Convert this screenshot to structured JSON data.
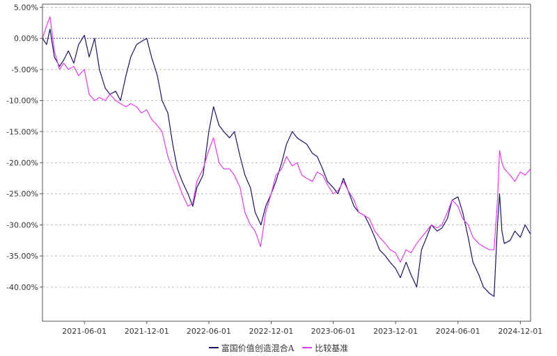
{
  "chart_data": {
    "type": "line",
    "title": "",
    "xlabel": "",
    "ylabel": "",
    "ylim": [
      -0.455,
      0.055
    ],
    "yticks": [
      0.05,
      0.0,
      -0.05,
      -0.1,
      -0.15,
      -0.2,
      -0.25,
      -0.3,
      -0.35,
      -0.4
    ],
    "ytick_labels": [
      "5.00%",
      "0.00%",
      "-5.00%",
      "-10.00%",
      "-15.00%",
      "-20.00%",
      "-25.00%",
      "-30.00%",
      "-35.00%",
      "-40.00%"
    ],
    "xlim": [
      "2021-01-29",
      "2024-12-31"
    ],
    "xticks": [
      "2021-06-01",
      "2021-12-01",
      "2022-06-01",
      "2022-12-01",
      "2023-06-01",
      "2023-12-01",
      "2024-06-01",
      "2024-12-01"
    ],
    "xtick_labels": [
      "2021-06-01",
      "2021-12-01",
      "2022-06-01",
      "2022-12-01",
      "2023-06-01",
      "2023-12-01",
      "2024-06-01",
      "2024-12-01"
    ],
    "grid": true,
    "legend_position": "bottom",
    "series": [
      {
        "name": "富国价值创造混合A",
        "color": "#1a1260",
        "x": [
          "2021-01-29",
          "2021-02-10",
          "2021-02-20",
          "2021-03-05",
          "2021-03-20",
          "2021-04-01",
          "2021-04-15",
          "2021-05-01",
          "2021-05-15",
          "2021-06-01",
          "2021-06-15",
          "2021-07-01",
          "2021-07-15",
          "2021-08-01",
          "2021-08-15",
          "2021-09-01",
          "2021-09-15",
          "2021-10-01",
          "2021-10-15",
          "2021-11-01",
          "2021-11-15",
          "2021-12-01",
          "2021-12-15",
          "2022-01-01",
          "2022-01-15",
          "2022-02-01",
          "2022-02-15",
          "2022-03-01",
          "2022-03-15",
          "2022-04-01",
          "2022-04-15",
          "2022-04-27",
          "2022-05-15",
          "2022-06-01",
          "2022-06-15",
          "2022-07-01",
          "2022-07-15",
          "2022-08-01",
          "2022-08-15",
          "2022-09-01",
          "2022-09-15",
          "2022-10-01",
          "2022-10-15",
          "2022-11-01",
          "2022-11-15",
          "2022-12-01",
          "2022-12-15",
          "2023-01-01",
          "2023-01-15",
          "2023-02-01",
          "2023-02-15",
          "2023-03-01",
          "2023-03-15",
          "2023-04-01",
          "2023-04-15",
          "2023-05-01",
          "2023-05-15",
          "2023-06-01",
          "2023-06-15",
          "2023-07-01",
          "2023-07-15",
          "2023-08-01",
          "2023-08-15",
          "2023-09-01",
          "2023-09-15",
          "2023-10-01",
          "2023-10-15",
          "2023-11-01",
          "2023-11-15",
          "2023-12-01",
          "2023-12-15",
          "2024-01-01",
          "2024-01-15",
          "2024-02-01",
          "2024-02-15",
          "2024-03-01",
          "2024-03-15",
          "2024-04-01",
          "2024-04-15",
          "2024-05-01",
          "2024-05-15",
          "2024-06-01",
          "2024-06-15",
          "2024-07-01",
          "2024-07-15",
          "2024-08-01",
          "2024-08-15",
          "2024-09-01",
          "2024-09-15",
          "2024-09-25",
          "2024-10-01",
          "2024-10-08",
          "2024-10-15",
          "2024-11-01",
          "2024-11-15",
          "2024-12-01",
          "2024-12-15",
          "2024-12-31"
        ],
        "values": [
          0.0,
          -0.01,
          0.015,
          -0.03,
          -0.045,
          -0.035,
          -0.02,
          -0.04,
          -0.01,
          0.005,
          -0.03,
          0.0,
          -0.05,
          -0.08,
          -0.09,
          -0.085,
          -0.1,
          -0.06,
          -0.03,
          -0.01,
          -0.005,
          0.0,
          -0.03,
          -0.06,
          -0.1,
          -0.12,
          -0.17,
          -0.21,
          -0.23,
          -0.25,
          -0.27,
          -0.24,
          -0.22,
          -0.15,
          -0.11,
          -0.14,
          -0.15,
          -0.16,
          -0.15,
          -0.19,
          -0.22,
          -0.24,
          -0.28,
          -0.3,
          -0.27,
          -0.25,
          -0.23,
          -0.2,
          -0.17,
          -0.15,
          -0.16,
          -0.165,
          -0.17,
          -0.185,
          -0.19,
          -0.21,
          -0.23,
          -0.24,
          -0.25,
          -0.225,
          -0.245,
          -0.27,
          -0.28,
          -0.285,
          -0.3,
          -0.32,
          -0.34,
          -0.35,
          -0.36,
          -0.37,
          -0.385,
          -0.36,
          -0.38,
          -0.4,
          -0.34,
          -0.32,
          -0.3,
          -0.31,
          -0.305,
          -0.29,
          -0.26,
          -0.255,
          -0.28,
          -0.32,
          -0.36,
          -0.38,
          -0.4,
          -0.41,
          -0.415,
          -0.3,
          -0.25,
          -0.31,
          -0.33,
          -0.325,
          -0.31,
          -0.32,
          -0.3,
          -0.315
        ]
      },
      {
        "name": "比较基准",
        "color": "#e03ce8",
        "x": [
          "2021-01-29",
          "2021-02-10",
          "2021-02-20",
          "2021-03-05",
          "2021-03-20",
          "2021-04-01",
          "2021-04-15",
          "2021-05-01",
          "2021-05-15",
          "2021-06-01",
          "2021-06-15",
          "2021-07-01",
          "2021-07-15",
          "2021-08-01",
          "2021-08-15",
          "2021-09-01",
          "2021-09-15",
          "2021-10-01",
          "2021-10-15",
          "2021-11-01",
          "2021-11-15",
          "2021-12-01",
          "2021-12-15",
          "2022-01-01",
          "2022-01-15",
          "2022-02-01",
          "2022-02-15",
          "2022-03-01",
          "2022-03-15",
          "2022-04-01",
          "2022-04-15",
          "2022-04-27",
          "2022-05-15",
          "2022-06-01",
          "2022-06-15",
          "2022-07-01",
          "2022-07-15",
          "2022-08-01",
          "2022-08-15",
          "2022-09-01",
          "2022-09-15",
          "2022-10-01",
          "2022-10-15",
          "2022-10-31",
          "2022-11-15",
          "2022-12-01",
          "2022-12-15",
          "2023-01-01",
          "2023-01-15",
          "2023-02-01",
          "2023-02-15",
          "2023-03-01",
          "2023-03-15",
          "2023-04-01",
          "2023-04-15",
          "2023-05-01",
          "2023-05-15",
          "2023-06-01",
          "2023-06-15",
          "2023-07-01",
          "2023-07-15",
          "2023-08-01",
          "2023-08-15",
          "2023-09-01",
          "2023-09-15",
          "2023-10-01",
          "2023-10-15",
          "2023-11-01",
          "2023-11-15",
          "2023-12-01",
          "2023-12-15",
          "2024-01-01",
          "2024-01-15",
          "2024-02-01",
          "2024-02-15",
          "2024-03-01",
          "2024-03-15",
          "2024-04-01",
          "2024-04-15",
          "2024-05-01",
          "2024-05-15",
          "2024-06-01",
          "2024-06-15",
          "2024-07-01",
          "2024-07-15",
          "2024-08-01",
          "2024-08-15",
          "2024-09-01",
          "2024-09-15",
          "2024-09-25",
          "2024-10-01",
          "2024-10-08",
          "2024-10-15",
          "2024-11-01",
          "2024-11-15",
          "2024-12-01",
          "2024-12-15",
          "2024-12-31"
        ],
        "values": [
          0.0,
          0.02,
          0.035,
          -0.02,
          -0.05,
          -0.04,
          -0.05,
          -0.045,
          -0.06,
          -0.05,
          -0.09,
          -0.1,
          -0.095,
          -0.1,
          -0.09,
          -0.1,
          -0.105,
          -0.11,
          -0.105,
          -0.11,
          -0.12,
          -0.115,
          -0.13,
          -0.14,
          -0.15,
          -0.19,
          -0.21,
          -0.23,
          -0.25,
          -0.27,
          -0.265,
          -0.23,
          -0.21,
          -0.18,
          -0.16,
          -0.2,
          -0.21,
          -0.21,
          -0.22,
          -0.24,
          -0.28,
          -0.3,
          -0.31,
          -0.335,
          -0.28,
          -0.25,
          -0.22,
          -0.21,
          -0.19,
          -0.205,
          -0.2,
          -0.22,
          -0.225,
          -0.23,
          -0.215,
          -0.22,
          -0.235,
          -0.25,
          -0.245,
          -0.23,
          -0.245,
          -0.26,
          -0.28,
          -0.285,
          -0.29,
          -0.31,
          -0.32,
          -0.33,
          -0.34,
          -0.345,
          -0.36,
          -0.34,
          -0.345,
          -0.33,
          -0.32,
          -0.31,
          -0.3,
          -0.305,
          -0.3,
          -0.28,
          -0.26,
          -0.27,
          -0.29,
          -0.3,
          -0.32,
          -0.33,
          -0.335,
          -0.34,
          -0.34,
          -0.26,
          -0.18,
          -0.2,
          -0.21,
          -0.22,
          -0.23,
          -0.215,
          -0.22,
          -0.21
        ]
      }
    ]
  }
}
